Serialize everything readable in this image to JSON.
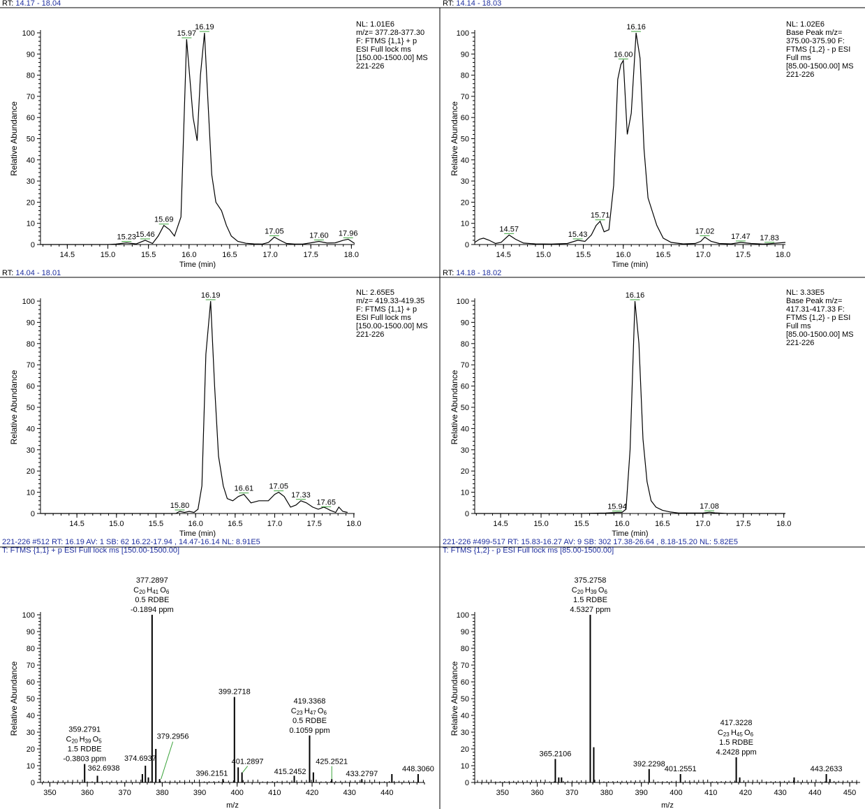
{
  "panels": [
    {
      "header": [
        {
          "parts": [
            [
              "RT: ",
              "#000000"
            ],
            [
              "14.17 - 18.04",
              "#1f2f9f"
            ]
          ]
        }
      ],
      "info": [
        "NL: 1.01E6",
        "m/z= 377.28-377.30",
        "F: FTMS {1,1}  + p",
        "ESI Full lock ms",
        "[150.00-1500.00]  MS",
        "221-226"
      ],
      "ylabel": "Relative Abundance",
      "xlabel": "Time (min)"
    },
    {
      "header": [
        {
          "parts": [
            [
              "RT: ",
              "#000000"
            ],
            [
              "14.14 - 18.03",
              "#1f2f9f"
            ]
          ]
        }
      ],
      "info": [
        "NL: 1.02E6",
        "Base Peak m/z=",
        "375.00-375.90 F:",
        "FTMS {1,2}  - p ESI",
        "Full ms",
        "[85.00-1500.00]  MS",
        "221-226"
      ],
      "ylabel": "Relative Abundance",
      "xlabel": "Time (min)"
    },
    {
      "header": [
        {
          "parts": [
            [
              "RT: ",
              "#000000"
            ],
            [
              "14.04 - 18.01",
              "#1f2f9f"
            ]
          ]
        }
      ],
      "info": [
        "NL: 2.65E5",
        "m/z= 419.33-419.35",
        "F: FTMS {1,1}  + p",
        "ESI Full lock ms",
        "[150.00-1500.00]  MS",
        "221-226"
      ],
      "ylabel": "Relative Abundance",
      "xlabel": "Time (min)"
    },
    {
      "header": [
        {
          "parts": [
            [
              "RT: ",
              "#000000"
            ],
            [
              "14.18 - 18.02",
              "#1f2f9f"
            ]
          ]
        }
      ],
      "info": [
        "NL: 3.33E5",
        "Base Peak m/z=",
        "417.31-417.33 F:",
        "FTMS {1,2}  - p ESI",
        "Full ms",
        "[85.00-1500.00]  MS",
        "221-226"
      ],
      "ylabel": "Relative Abundance",
      "xlabel": "Time (min)"
    },
    {
      "header": [
        {
          "parts": [
            [
              "221-226 #512   RT: 16.19   AV: 1   SB: 62  16.22-17.94 , 14.47-16.14   NL: 8.91E5",
              "#1f2f9f"
            ]
          ]
        },
        {
          "parts": [
            [
              "T: FTMS {1,1}  + p ESI Full lock ms [150.00-1500.00]",
              "#1f2f9f"
            ]
          ]
        }
      ],
      "info": [],
      "ylabel": "Relative Abundance",
      "xlabel": "m/z"
    },
    {
      "header": [
        {
          "parts": [
            [
              "221-226 #499-517   RT: 15.83-16.27   AV: 9   SB: 302  17.38-26.64 , 8.18-15.20   NL: 5.82E5",
              "#1f2f9f"
            ]
          ]
        },
        {
          "parts": [
            [
              "T: FTMS {1,2}  - p ESI Full lock ms [85.00-1500.00]",
              "#1f2f9f"
            ]
          ]
        }
      ],
      "info": [],
      "ylabel": "Relative Abundance",
      "xlabel": "m/z"
    }
  ],
  "chart_data": [
    {
      "type": "line",
      "xlabel": "Time (min)",
      "ylabel": "Relative Abundance",
      "xlim": [
        14.17,
        18.04
      ],
      "ylim": [
        0,
        100
      ],
      "xticks": [
        14.5,
        15.0,
        15.5,
        16.0,
        16.5,
        17.0,
        17.5,
        18.0
      ],
      "yticks": [
        0,
        10,
        20,
        30,
        40,
        50,
        60,
        70,
        80,
        90,
        100
      ],
      "x": [
        14.17,
        14.5,
        15.0,
        15.1,
        15.23,
        15.35,
        15.46,
        15.55,
        15.62,
        15.69,
        15.76,
        15.82,
        15.9,
        15.97,
        16.05,
        16.1,
        16.14,
        16.19,
        16.23,
        16.28,
        16.33,
        16.4,
        16.46,
        16.52,
        16.6,
        16.7,
        16.8,
        16.9,
        16.98,
        17.05,
        17.12,
        17.2,
        17.3,
        17.4,
        17.5,
        17.6,
        17.7,
        17.8,
        17.9,
        17.96,
        18.04
      ],
      "y": [
        0,
        0,
        0,
        0.2,
        0.8,
        0.3,
        2,
        0.5,
        4,
        9,
        7,
        4,
        13,
        97,
        60,
        49,
        80,
        100,
        70,
        33,
        20,
        16,
        9,
        4,
        1.5,
        0.6,
        0.3,
        0.2,
        1,
        3.5,
        2,
        0.5,
        0.2,
        0.2,
        0.8,
        1.5,
        0.7,
        0.8,
        2,
        2.5,
        0.5
      ],
      "peak_labels": [
        {
          "x": 15.23,
          "y": 0.8,
          "label": "15.23"
        },
        {
          "x": 15.46,
          "y": 2,
          "label": "15.46"
        },
        {
          "x": 15.69,
          "y": 9,
          "label": "15.69"
        },
        {
          "x": 15.97,
          "y": 97,
          "label": "15.97"
        },
        {
          "x": 16.19,
          "y": 100,
          "label": "16.19"
        },
        {
          "x": 17.05,
          "y": 3.5,
          "label": "17.05"
        },
        {
          "x": 17.6,
          "y": 1.5,
          "label": "17.60"
        },
        {
          "x": 17.96,
          "y": 2.5,
          "label": "17.96"
        }
      ]
    },
    {
      "type": "line",
      "xlabel": "Time (min)",
      "ylabel": "Relative Abundance",
      "xlim": [
        14.14,
        18.03
      ],
      "ylim": [
        0,
        100
      ],
      "xticks": [
        14.5,
        15.0,
        15.5,
        16.0,
        16.5,
        17.0,
        17.5,
        18.0
      ],
      "yticks": [
        0,
        10,
        20,
        30,
        40,
        50,
        60,
        70,
        80,
        90,
        100
      ],
      "x": [
        14.14,
        14.2,
        14.25,
        14.32,
        14.4,
        14.47,
        14.57,
        14.65,
        14.75,
        14.9,
        15.1,
        15.3,
        15.43,
        15.52,
        15.6,
        15.66,
        15.71,
        15.76,
        15.82,
        15.88,
        15.93,
        15.97,
        16.0,
        16.05,
        16.1,
        16.16,
        16.21,
        16.26,
        16.31,
        16.36,
        16.42,
        16.5,
        16.6,
        16.75,
        16.9,
        16.97,
        17.02,
        17.1,
        17.2,
        17.35,
        17.47,
        17.6,
        17.75,
        17.83,
        18.03
      ],
      "y": [
        1,
        2.5,
        3,
        2,
        0.5,
        1,
        4.5,
        2.5,
        0.7,
        0.3,
        0.2,
        0.5,
        2,
        1.5,
        4.5,
        9,
        11,
        6,
        7,
        28,
        78,
        85,
        87,
        52,
        62,
        100,
        88,
        45,
        22,
        16,
        9,
        3,
        1,
        0.3,
        0.5,
        1.5,
        3.5,
        1.5,
        0.5,
        0.3,
        1,
        0.5,
        0.2,
        0.4,
        1
      ],
      "peak_labels": [
        {
          "x": 14.57,
          "y": 4.5,
          "label": "14.57"
        },
        {
          "x": 15.43,
          "y": 2,
          "label": "15.43"
        },
        {
          "x": 15.71,
          "y": 11,
          "label": "15.71"
        },
        {
          "x": 16.0,
          "y": 87,
          "label": "16.00"
        },
        {
          "x": 16.16,
          "y": 100,
          "label": "16.16"
        },
        {
          "x": 17.02,
          "y": 3.5,
          "label": "17.02"
        },
        {
          "x": 17.47,
          "y": 1,
          "label": "17.47"
        },
        {
          "x": 17.83,
          "y": 0.4,
          "label": "17.83"
        }
      ]
    },
    {
      "type": "line",
      "xlabel": "Time (min)",
      "ylabel": "Relative Abundance",
      "xlim": [
        14.04,
        18.01
      ],
      "ylim": [
        0,
        100
      ],
      "xticks": [
        14.5,
        15.0,
        15.5,
        16.0,
        16.5,
        17.0,
        17.5,
        18.0
      ],
      "yticks": [
        0,
        10,
        20,
        30,
        40,
        50,
        60,
        70,
        80,
        90,
        100
      ],
      "x": [
        14.04,
        15.5,
        15.75,
        15.8,
        15.86,
        15.92,
        15.98,
        16.03,
        16.08,
        16.13,
        16.19,
        16.24,
        16.29,
        16.35,
        16.4,
        16.47,
        16.54,
        16.61,
        16.7,
        16.8,
        16.92,
        17.0,
        17.05,
        17.12,
        17.2,
        17.27,
        17.33,
        17.4,
        17.48,
        17.55,
        17.62,
        17.65,
        17.7,
        17.77,
        17.81,
        17.86,
        17.92
      ],
      "y": [
        0,
        0,
        0,
        1,
        0.5,
        1,
        0.5,
        2,
        13,
        75,
        100,
        60,
        27,
        13,
        7,
        6,
        8,
        9,
        5,
        6,
        6,
        9,
        10,
        8,
        3,
        4,
        6,
        5,
        3,
        2,
        3,
        2.5,
        1.5,
        0.5,
        3,
        1,
        0.5
      ],
      "peak_labels": [
        {
          "x": 15.8,
          "y": 1,
          "label": "15.80"
        },
        {
          "x": 16.19,
          "y": 100,
          "label": "16.19"
        },
        {
          "x": 16.61,
          "y": 9,
          "label": "16.61"
        },
        {
          "x": 17.05,
          "y": 10,
          "label": "17.05"
        },
        {
          "x": 17.33,
          "y": 6,
          "label": "17.33"
        },
        {
          "x": 17.65,
          "y": 2.5,
          "label": "17.65"
        }
      ]
    },
    {
      "type": "line",
      "xlabel": "Time (min)",
      "ylabel": "Relative Abundance",
      "xlim": [
        14.18,
        18.02
      ],
      "ylim": [
        0,
        100
      ],
      "xticks": [
        14.5,
        15.0,
        15.5,
        16.0,
        16.5,
        17.0,
        17.5,
        18.0
      ],
      "yticks": [
        0,
        10,
        20,
        30,
        40,
        50,
        60,
        70,
        80,
        90,
        100
      ],
      "x": [
        14.18,
        15.5,
        15.8,
        15.94,
        16.0,
        16.05,
        16.1,
        16.16,
        16.21,
        16.26,
        16.31,
        16.36,
        16.42,
        16.5,
        16.6,
        16.7,
        17.0,
        17.08,
        17.15,
        17.3,
        18.02
      ],
      "y": [
        0,
        0,
        0.2,
        0.5,
        0.5,
        2,
        30,
        100,
        80,
        35,
        15,
        6,
        3,
        1.5,
        0.7,
        0.2,
        0.2,
        0.6,
        0.3,
        0,
        0
      ],
      "peak_labels": [
        {
          "x": 15.94,
          "y": 0.5,
          "label": "15.94"
        },
        {
          "x": 16.16,
          "y": 100,
          "label": "16.16"
        },
        {
          "x": 17.08,
          "y": 0.6,
          "label": "17.08"
        }
      ]
    },
    {
      "type": "bar",
      "xlabel": "m/z",
      "ylabel": "Relative Abundance",
      "xlim": [
        347.5,
        450
      ],
      "ylim": [
        0,
        100
      ],
      "xticks": [
        350,
        360,
        370,
        380,
        390,
        400,
        410,
        420,
        430,
        440
      ],
      "yticks": [
        0,
        10,
        20,
        30,
        40,
        50,
        60,
        70,
        80,
        90,
        100
      ],
      "peaks": [
        {
          "mz": 359.2791,
          "y": 11,
          "label": [
            "359.2791",
            "C20H39O5",
            "1.5 RDBE",
            "-0.3803 ppm"
          ]
        },
        {
          "mz": 362.6938,
          "y": 4,
          "label": [
            "362.6938"
          ]
        },
        {
          "mz": 374.6937,
          "y": 5,
          "label": [
            "374.6937"
          ]
        },
        {
          "mz": 375.5,
          "y": 10
        },
        {
          "mz": 376.3,
          "y": 3
        },
        {
          "mz": 377.2897,
          "y": 100,
          "label": [
            "377.2897",
            "C20H41O6",
            "0.5 RDBE",
            "-0.1894 ppm"
          ]
        },
        {
          "mz": 378.29,
          "y": 20
        },
        {
          "mz": 379.2956,
          "y": 2,
          "label": [
            "379.2956"
          ]
        },
        {
          "mz": 396.2151,
          "y": 2,
          "label": [
            "396.2151"
          ]
        },
        {
          "mz": 399.2718,
          "y": 51,
          "label": [
            "399.2718"
          ]
        },
        {
          "mz": 400.27,
          "y": 9
        },
        {
          "mz": 401.2897,
          "y": 6,
          "label": [
            "401.2897"
          ]
        },
        {
          "mz": 415.2452,
          "y": 4,
          "label": [
            "415.2452"
          ]
        },
        {
          "mz": 419.3368,
          "y": 28,
          "label": [
            "419.3368",
            "C23H47O6",
            "0.5 RDBE",
            "0.1059 ppm"
          ]
        },
        {
          "mz": 420.34,
          "y": 6
        },
        {
          "mz": 425.2521,
          "y": 2,
          "label": [
            "425.2521"
          ]
        },
        {
          "mz": 433.2797,
          "y": 2,
          "label": [
            "433.2797"
          ]
        },
        {
          "mz": 441.3,
          "y": 5
        },
        {
          "mz": 448.306,
          "y": 5,
          "label": [
            "448.3060"
          ]
        }
      ]
    },
    {
      "type": "bar",
      "xlabel": "m/z",
      "ylabel": "Relative Abundance",
      "xlim": [
        342,
        453
      ],
      "ylim": [
        0,
        100
      ],
      "xticks": [
        350,
        360,
        370,
        380,
        390,
        400,
        410,
        420,
        430,
        440,
        450
      ],
      "yticks": [
        0,
        10,
        20,
        30,
        40,
        50,
        60,
        70,
        80,
        90,
        100
      ],
      "peaks": [
        {
          "mz": 365.2106,
          "y": 14,
          "label": [
            "365.2106"
          ]
        },
        {
          "mz": 366.2,
          "y": 3
        },
        {
          "mz": 367.0,
          "y": 3
        },
        {
          "mz": 375.2758,
          "y": 100,
          "label": [
            "375.2758",
            "C20H39O6",
            "1.5 RDBE",
            "4.5327 ppm"
          ]
        },
        {
          "mz": 376.28,
          "y": 21
        },
        {
          "mz": 392.2298,
          "y": 8,
          "label": [
            "392.2298"
          ]
        },
        {
          "mz": 401.2551,
          "y": 5,
          "label": [
            "401.2551"
          ]
        },
        {
          "mz": 417.3228,
          "y": 15,
          "label": [
            "417.3228",
            "C23H45O6",
            "1.5 RDBE",
            "4.2428 ppm"
          ]
        },
        {
          "mz": 418.33,
          "y": 3
        },
        {
          "mz": 434.0,
          "y": 3
        },
        {
          "mz": 443.2633,
          "y": 5,
          "label": [
            "443.2633"
          ]
        },
        {
          "mz": 444.3,
          "y": 2
        }
      ]
    }
  ]
}
